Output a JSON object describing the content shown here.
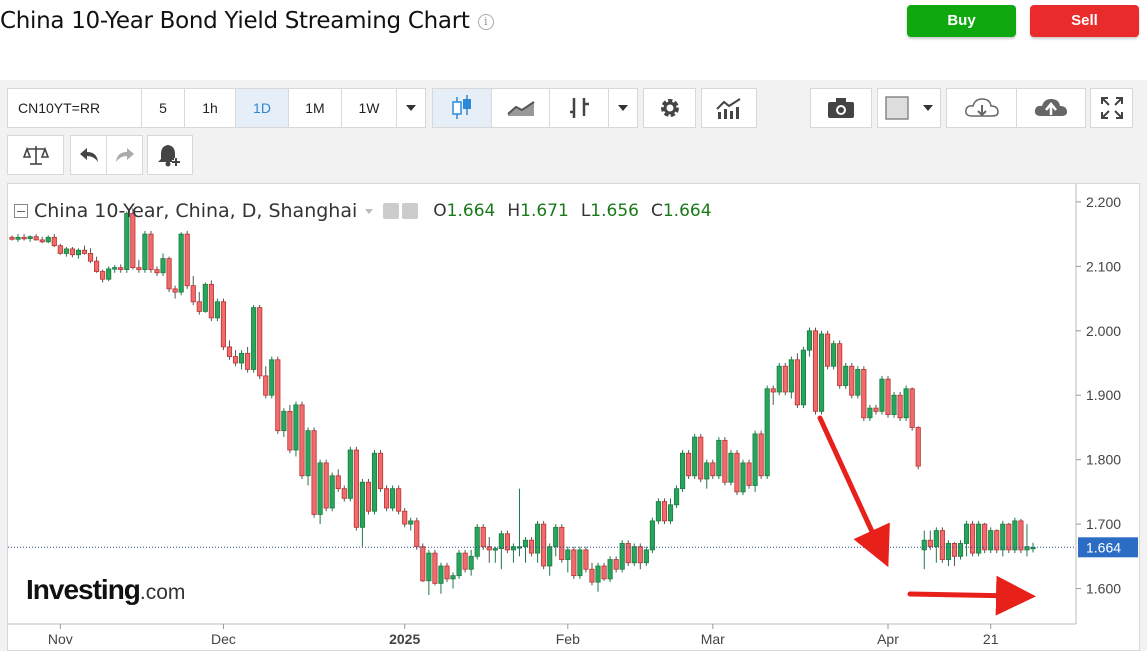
{
  "page": {
    "title": "China 10-Year Bond Yield Streaming Chart",
    "buy_label": "Buy",
    "sell_label": "Sell"
  },
  "toolbar": {
    "symbol": "CN10YT=RR",
    "intervals": [
      "5",
      "1h",
      "1D",
      "1M",
      "1W"
    ],
    "selected_interval": "1D",
    "icons": [
      "candlestick-icon",
      "line-chart-icon",
      "bar-chart-icon",
      "gear-icon",
      "indicators-icon",
      "camera-icon",
      "color-box-icon",
      "cloud-download-icon",
      "cloud-upload-icon",
      "fullscreen-icon",
      "scale-icon",
      "undo-icon",
      "redo-icon",
      "alert-bell-icon"
    ]
  },
  "legend": {
    "name": "China 10-Year, China, D, Shanghai",
    "o_label": "O",
    "o": "1.664",
    "h_label": "H",
    "h": "1.671",
    "l_label": "L",
    "l": "1.656",
    "c_label": "C",
    "c": "1.664"
  },
  "logo": {
    "main": "Investing",
    "suffix": ".com"
  },
  "chart_data": {
    "type": "candlestick",
    "title": "",
    "xlabel": "",
    "ylabel": "",
    "ylim": [
      1.545,
      2.22
    ],
    "y_ticks": [
      "2.200",
      "2.100",
      "2.000",
      "1.900",
      "1.800",
      "1.700",
      "1.600"
    ],
    "x_ticks": [
      {
        "label": "Nov",
        "index": 8
      },
      {
        "label": "Dec",
        "index": 35
      },
      {
        "label": "2025",
        "index": 65
      },
      {
        "label": "Feb",
        "index": 92
      },
      {
        "label": "Mar",
        "index": 116
      },
      {
        "label": "Apr",
        "index": 145
      },
      {
        "label": "21",
        "index": 162
      }
    ],
    "last_value": "1.664",
    "up_color": "#26a65b",
    "down_color": "#f06b6b",
    "candles": [
      [
        2.145,
        2.148,
        2.14,
        2.142
      ],
      [
        2.142,
        2.15,
        2.138,
        2.145
      ],
      [
        2.145,
        2.15,
        2.14,
        2.143
      ],
      [
        2.143,
        2.148,
        2.138,
        2.146
      ],
      [
        2.146,
        2.15,
        2.14,
        2.141
      ],
      [
        2.141,
        2.146,
        2.136,
        2.138
      ],
      [
        2.138,
        2.148,
        2.136,
        2.145
      ],
      [
        2.145,
        2.15,
        2.13,
        2.132
      ],
      [
        2.132,
        2.135,
        2.118,
        2.12
      ],
      [
        2.12,
        2.13,
        2.115,
        2.127
      ],
      [
        2.127,
        2.13,
        2.114,
        2.118
      ],
      [
        2.118,
        2.128,
        2.112,
        2.125
      ],
      [
        2.125,
        2.132,
        2.118,
        2.12
      ],
      [
        2.12,
        2.128,
        2.105,
        2.108
      ],
      [
        2.108,
        2.115,
        2.09,
        2.092
      ],
      [
        2.092,
        2.095,
        2.075,
        2.08
      ],
      [
        2.08,
        2.1,
        2.077,
        2.096
      ],
      [
        2.096,
        2.102,
        2.09,
        2.098
      ],
      [
        2.098,
        2.103,
        2.09,
        2.095
      ],
      [
        2.095,
        2.185,
        2.09,
        2.182
      ],
      [
        2.182,
        2.19,
        2.095,
        2.098
      ],
      [
        2.098,
        2.11,
        2.09,
        2.095
      ],
      [
        2.095,
        2.155,
        2.09,
        2.15
      ],
      [
        2.15,
        2.155,
        2.09,
        2.095
      ],
      [
        2.095,
        2.1,
        2.085,
        2.09
      ],
      [
        2.09,
        2.12,
        2.085,
        2.112
      ],
      [
        2.112,
        2.115,
        2.06,
        2.065
      ],
      [
        2.065,
        2.07,
        2.05,
        2.06
      ],
      [
        2.06,
        2.153,
        2.055,
        2.15
      ],
      [
        2.15,
        2.155,
        2.065,
        2.07
      ],
      [
        2.07,
        2.085,
        2.04,
        2.045
      ],
      [
        2.045,
        2.06,
        2.025,
        2.03
      ],
      [
        2.03,
        2.075,
        2.028,
        2.072
      ],
      [
        2.072,
        2.078,
        2.015,
        2.02
      ],
      [
        2.02,
        2.05,
        2.015,
        2.045
      ],
      [
        2.045,
        2.05,
        1.97,
        1.975
      ],
      [
        1.975,
        1.985,
        1.955,
        1.96
      ],
      [
        1.96,
        1.97,
        1.945,
        1.95
      ],
      [
        1.95,
        1.97,
        1.94,
        1.965
      ],
      [
        1.965,
        1.975,
        1.935,
        1.94
      ],
      [
        1.94,
        2.04,
        1.935,
        2.036
      ],
      [
        2.036,
        2.04,
        1.925,
        1.93
      ],
      [
        1.93,
        1.945,
        1.895,
        1.9
      ],
      [
        1.9,
        1.96,
        1.895,
        1.955
      ],
      [
        1.955,
        1.96,
        1.84,
        1.845
      ],
      [
        1.845,
        1.88,
        1.835,
        1.875
      ],
      [
        1.875,
        1.885,
        1.81,
        1.815
      ],
      [
        1.815,
        1.89,
        1.805,
        1.885
      ],
      [
        1.885,
        1.89,
        1.77,
        1.775
      ],
      [
        1.775,
        1.85,
        1.76,
        1.845
      ],
      [
        1.845,
        1.85,
        1.71,
        1.715
      ],
      [
        1.715,
        1.8,
        1.7,
        1.795
      ],
      [
        1.795,
        1.8,
        1.72,
        1.725
      ],
      [
        1.725,
        1.78,
        1.72,
        1.775
      ],
      [
        1.775,
        1.785,
        1.75,
        1.755
      ],
      [
        1.755,
        1.76,
        1.735,
        1.74
      ],
      [
        1.74,
        1.82,
        1.735,
        1.815
      ],
      [
        1.815,
        1.82,
        1.69,
        1.695
      ],
      [
        1.695,
        1.77,
        1.665,
        1.765
      ],
      [
        1.765,
        1.77,
        1.715,
        1.72
      ],
      [
        1.72,
        1.815,
        1.715,
        1.81
      ],
      [
        1.81,
        1.815,
        1.75,
        1.755
      ],
      [
        1.755,
        1.76,
        1.72,
        1.725
      ],
      [
        1.725,
        1.76,
        1.72,
        1.755
      ],
      [
        1.755,
        1.76,
        1.715,
        1.72
      ],
      [
        1.72,
        1.725,
        1.695,
        1.7
      ],
      [
        1.7,
        1.71,
        1.69,
        1.705
      ],
      [
        1.705,
        1.71,
        1.66,
        1.665
      ],
      [
        1.665,
        1.67,
        1.61,
        1.612
      ],
      [
        1.612,
        1.66,
        1.59,
        1.655
      ],
      [
        1.655,
        1.66,
        1.605,
        1.608
      ],
      [
        1.608,
        1.64,
        1.592,
        1.635
      ],
      [
        1.635,
        1.64,
        1.61,
        1.615
      ],
      [
        1.615,
        1.625,
        1.6,
        1.62
      ],
      [
        1.62,
        1.66,
        1.615,
        1.655
      ],
      [
        1.655,
        1.66,
        1.625,
        1.63
      ],
      [
        1.63,
        1.66,
        1.62,
        1.65
      ],
      [
        1.65,
        1.7,
        1.645,
        1.695
      ],
      [
        1.695,
        1.7,
        1.66,
        1.665
      ],
      [
        1.665,
        1.68,
        1.64,
        1.66
      ],
      [
        1.66,
        1.665,
        1.64,
        1.662
      ],
      [
        1.662,
        1.69,
        1.63,
        1.685
      ],
      [
        1.685,
        1.69,
        1.655,
        1.66
      ],
      [
        1.66,
        1.67,
        1.64,
        1.665
      ],
      [
        1.665,
        1.755,
        1.65,
        1.665
      ],
      [
        1.665,
        1.68,
        1.64,
        1.675
      ],
      [
        1.675,
        1.68,
        1.65,
        1.655
      ],
      [
        1.655,
        1.705,
        1.64,
        1.7
      ],
      [
        1.7,
        1.705,
        1.63,
        1.635
      ],
      [
        1.635,
        1.67,
        1.62,
        1.665
      ],
      [
        1.665,
        1.7,
        1.65,
        1.695
      ],
      [
        1.695,
        1.7,
        1.64,
        1.645
      ],
      [
        1.645,
        1.665,
        1.625,
        1.66
      ],
      [
        1.66,
        1.665,
        1.615,
        1.62
      ],
      [
        1.62,
        1.665,
        1.615,
        1.66
      ],
      [
        1.66,
        1.665,
        1.625,
        1.63
      ],
      [
        1.63,
        1.64,
        1.605,
        1.61
      ],
      [
        1.61,
        1.64,
        1.595,
        1.635
      ],
      [
        1.635,
        1.64,
        1.612,
        1.615
      ],
      [
        1.615,
        1.65,
        1.61,
        1.645
      ],
      [
        1.645,
        1.65,
        1.625,
        1.63
      ],
      [
        1.63,
        1.675,
        1.625,
        1.67
      ],
      [
        1.67,
        1.675,
        1.635,
        1.64
      ],
      [
        1.64,
        1.67,
        1.635,
        1.665
      ],
      [
        1.665,
        1.67,
        1.63,
        1.64
      ],
      [
        1.64,
        1.665,
        1.635,
        1.66
      ],
      [
        1.66,
        1.71,
        1.655,
        1.705
      ],
      [
        1.705,
        1.74,
        1.7,
        1.735
      ],
      [
        1.735,
        1.74,
        1.7,
        1.705
      ],
      [
        1.705,
        1.74,
        1.7,
        1.73
      ],
      [
        1.73,
        1.76,
        1.725,
        1.755
      ],
      [
        1.755,
        1.815,
        1.75,
        1.81
      ],
      [
        1.81,
        1.815,
        1.77,
        1.775
      ],
      [
        1.775,
        1.84,
        1.77,
        1.835
      ],
      [
        1.835,
        1.84,
        1.765,
        1.77
      ],
      [
        1.77,
        1.8,
        1.755,
        1.795
      ],
      [
        1.795,
        1.8,
        1.77,
        1.775
      ],
      [
        1.775,
        1.835,
        1.77,
        1.83
      ],
      [
        1.83,
        1.835,
        1.76,
        1.765
      ],
      [
        1.765,
        1.815,
        1.76,
        1.81
      ],
      [
        1.81,
        1.815,
        1.745,
        1.75
      ],
      [
        1.75,
        1.8,
        1.745,
        1.795
      ],
      [
        1.795,
        1.8,
        1.755,
        1.76
      ],
      [
        1.76,
        1.845,
        1.75,
        1.84
      ],
      [
        1.84,
        1.845,
        1.77,
        1.775
      ],
      [
        1.775,
        1.915,
        1.77,
        1.91
      ],
      [
        1.91,
        1.915,
        1.885,
        1.905
      ],
      [
        1.905,
        1.95,
        1.9,
        1.945
      ],
      [
        1.945,
        1.95,
        1.9,
        1.905
      ],
      [
        1.905,
        1.96,
        1.895,
        1.955
      ],
      [
        1.955,
        1.965,
        1.88,
        1.885
      ],
      [
        1.885,
        1.975,
        1.88,
        1.97
      ],
      [
        1.97,
        2.005,
        1.96,
        2.0
      ],
      [
        2.0,
        2.005,
        1.87,
        1.875
      ],
      [
        1.875,
        2.0,
        1.87,
        1.995
      ],
      [
        1.995,
        2.0,
        1.94,
        1.945
      ],
      [
        1.945,
        1.985,
        1.94,
        1.98
      ],
      [
        1.98,
        1.985,
        1.91,
        1.915
      ],
      [
        1.915,
        1.95,
        1.91,
        1.945
      ],
      [
        1.945,
        1.95,
        1.895,
        1.9
      ],
      [
        1.9,
        1.945,
        1.895,
        1.94
      ],
      [
        1.94,
        1.945,
        1.86,
        1.865
      ],
      [
        1.865,
        1.885,
        1.86,
        1.88
      ],
      [
        1.88,
        1.885,
        1.87,
        1.875
      ],
      [
        1.875,
        1.93,
        1.87,
        1.925
      ],
      [
        1.925,
        1.93,
        1.865,
        1.87
      ],
      [
        1.87,
        1.905,
        1.865,
        1.9
      ],
      [
        1.9,
        1.905,
        1.86,
        1.865
      ],
      [
        1.865,
        1.915,
        1.86,
        1.91
      ],
      [
        1.91,
        1.912,
        1.845,
        1.85
      ],
      [
        1.85,
        1.852,
        1.785,
        1.79
      ],
      [
        1.66,
        1.69,
        1.63,
        1.675
      ],
      [
        1.675,
        1.69,
        1.66,
        1.665
      ],
      [
        1.665,
        1.695,
        1.64,
        1.69
      ],
      [
        1.69,
        1.695,
        1.64,
        1.645
      ],
      [
        1.645,
        1.675,
        1.635,
        1.67
      ],
      [
        1.67,
        1.672,
        1.635,
        1.65
      ],
      [
        1.65,
        1.675,
        1.645,
        1.67
      ],
      [
        1.67,
        1.705,
        1.65,
        1.7
      ],
      [
        1.7,
        1.705,
        1.65,
        1.655
      ],
      [
        1.655,
        1.705,
        1.65,
        1.7
      ],
      [
        1.7,
        1.702,
        1.655,
        1.66
      ],
      [
        1.66,
        1.695,
        1.655,
        1.69
      ],
      [
        1.69,
        1.692,
        1.655,
        1.66
      ],
      [
        1.66,
        1.705,
        1.65,
        1.7
      ],
      [
        1.7,
        1.702,
        1.655,
        1.66
      ],
      [
        1.66,
        1.71,
        1.655,
        1.705
      ],
      [
        1.705,
        1.708,
        1.655,
        1.66
      ],
      [
        1.66,
        1.7,
        1.65,
        1.665
      ],
      [
        1.664,
        1.671,
        1.656,
        1.664
      ]
    ]
  }
}
